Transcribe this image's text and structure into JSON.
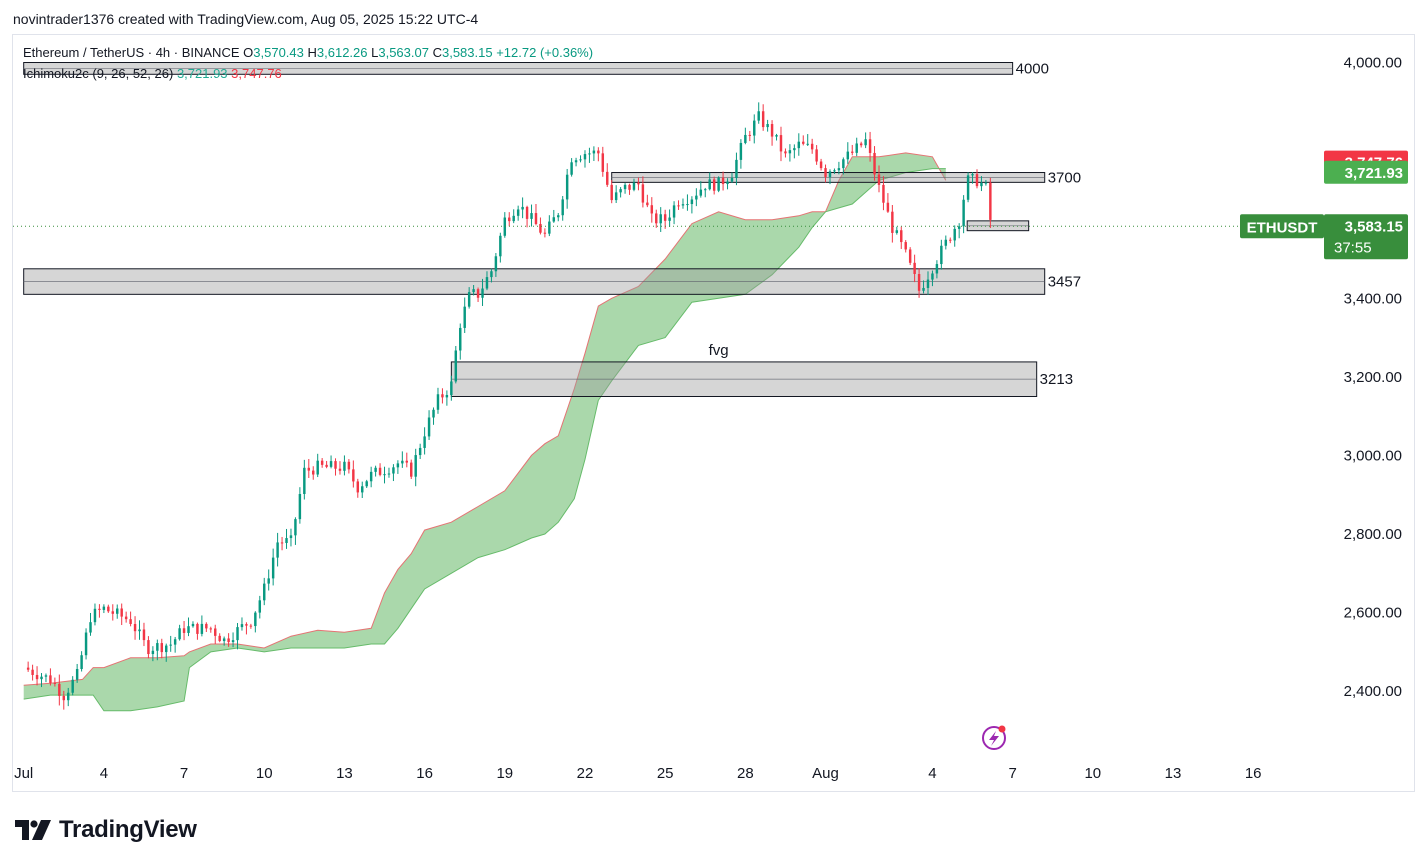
{
  "caption": "novintrader1376 created with TradingView.com, Aug 05, 2025 15:22 UTC-4",
  "legend": {
    "symbol": "Ethereum / TetherUS · 4h · BINANCE",
    "o_label": "O",
    "o_value": "3,570.43",
    "h_label": "H",
    "h_value": "3,612.26",
    "l_label": "L",
    "l_value": "3,563.07",
    "c_label": "C",
    "c_value": "3,583.15",
    "change": "+12.72 (+0.36%)",
    "indicator": "Ichimoku2c (9, 26, 52, 26)",
    "ind_value_1": "3,721.93",
    "ind_value_2": "3,747.76"
  },
  "brand": {
    "name": "TradingView"
  },
  "colors": {
    "up": "#089981",
    "down": "#f23645",
    "cloud": "#a5d6a7",
    "cloud_edge_top": "#e57373",
    "badge_red": "#f23645",
    "badge_green": "#4caf50",
    "price_badge": "#388e3c"
  },
  "chart_data": {
    "type": "candlestick",
    "symbol": "ETHUSDT",
    "y_ticks": [
      "4,000.00",
      "3,400.00",
      "3,200.00",
      "3,000.00",
      "2,800.00",
      "2,600.00",
      "2,400.00"
    ],
    "y_tick_values": [
      4000,
      3400,
      3200,
      3000,
      2800,
      2600,
      2400
    ],
    "y_range": [
      2230,
      4070
    ],
    "x_ticks": [
      "Jul",
      "4",
      "7",
      "10",
      "13",
      "16",
      "19",
      "22",
      "25",
      "28",
      "Aug",
      "4",
      "7",
      "10",
      "13",
      "16"
    ],
    "x_tick_days": [
      0,
      3,
      6,
      9,
      12,
      15,
      18,
      21,
      24,
      27,
      30,
      34,
      37,
      40,
      43,
      46
    ],
    "x_range_days": [
      -0.4,
      48.5
    ],
    "last_price": {
      "price": 3583.15,
      "label": "3,583.15",
      "symbol": "ETHUSDT",
      "countdown": "37:55"
    },
    "badges": [
      {
        "price": 3747.76,
        "label": "3,747.76",
        "color": "red"
      },
      {
        "price": 3721.93,
        "label": "3,721.93",
        "color": "green"
      }
    ],
    "zones": [
      {
        "label": "4000",
        "start_day": 0,
        "end_day": 37,
        "top": 4000,
        "bottom": 3970
      },
      {
        "label": "3700",
        "start_day": 22,
        "end_day": 38.2,
        "top": 3720,
        "bottom": 3695
      },
      {
        "label": "3457",
        "start_day": 0,
        "end_day": 38.2,
        "top": 3475,
        "bottom": 3410
      },
      {
        "label": "3213",
        "start_day": 16,
        "end_day": 37.9,
        "top": 3238,
        "bottom": 3150
      },
      {
        "label": "",
        "start_day": 35.3,
        "end_day": 37.6,
        "top": 3597,
        "bottom": 3572
      }
    ],
    "zone_notes": [
      {
        "label": "fvg",
        "day": 26,
        "price": 3255
      }
    ],
    "price_path": [
      [
        0,
        2460
      ],
      [
        1,
        2430
      ],
      [
        1.5,
        2390
      ],
      [
        2,
        2440
      ],
      [
        2.5,
        2590
      ],
      [
        3,
        2610
      ],
      [
        4,
        2580
      ],
      [
        4.6,
        2510
      ],
      [
        5.5,
        2520
      ],
      [
        6,
        2560
      ],
      [
        7,
        2560
      ],
      [
        7.5,
        2530
      ],
      [
        8.5,
        2580
      ],
      [
        9,
        2660
      ],
      [
        9.5,
        2780
      ],
      [
        10,
        2780
      ],
      [
        10.5,
        2960
      ],
      [
        11,
        2970
      ],
      [
        12,
        2970
      ],
      [
        12.5,
        2920
      ],
      [
        13,
        2950
      ],
      [
        14,
        2980
      ],
      [
        14.5,
        2960
      ],
      [
        15,
        3060
      ],
      [
        15.5,
        3140
      ],
      [
        16,
        3180
      ],
      [
        16.3,
        3330
      ],
      [
        16.7,
        3410
      ],
      [
        17,
        3410
      ],
      [
        17.5,
        3470
      ],
      [
        18,
        3600
      ],
      [
        18.5,
        3640
      ],
      [
        19,
        3600
      ],
      [
        19.5,
        3560
      ],
      [
        20,
        3620
      ],
      [
        20.5,
        3760
      ],
      [
        21,
        3770
      ],
      [
        21.5,
        3770
      ],
      [
        22,
        3650
      ],
      [
        22.5,
        3680
      ],
      [
        23,
        3690
      ],
      [
        23.5,
        3600
      ],
      [
        24,
        3600
      ],
      [
        24.5,
        3650
      ],
      [
        25,
        3660
      ],
      [
        25.5,
        3690
      ],
      [
        26,
        3690
      ],
      [
        26.5,
        3720
      ],
      [
        27,
        3810
      ],
      [
        27.5,
        3860
      ],
      [
        28,
        3820
      ],
      [
        28.5,
        3760
      ],
      [
        29,
        3790
      ],
      [
        29.5,
        3780
      ],
      [
        30,
        3720
      ],
      [
        31,
        3770
      ],
      [
        31.5,
        3800
      ],
      [
        32,
        3680
      ],
      [
        32.5,
        3580
      ],
      [
        33,
        3510
      ],
      [
        33.5,
        3420
      ],
      [
        34,
        3480
      ],
      [
        34.5,
        3540
      ],
      [
        35,
        3600
      ],
      [
        35.3,
        3700
      ],
      [
        35.7,
        3700
      ],
      [
        36,
        3680
      ],
      [
        36.2,
        3583
      ]
    ],
    "cloud": [
      [
        0,
        2415,
        2380
      ],
      [
        1,
        2420,
        2390
      ],
      [
        2.2,
        2430,
        2390
      ],
      [
        2.6,
        2460,
        2390
      ],
      [
        3,
        2460,
        2350
      ],
      [
        4,
        2485,
        2350
      ],
      [
        5,
        2485,
        2360
      ],
      [
        6,
        2490,
        2375
      ],
      [
        6.2,
        2500,
        2460
      ],
      [
        7,
        2520,
        2500
      ],
      [
        8,
        2520,
        2510
      ],
      [
        9,
        2510,
        2500
      ],
      [
        10,
        2540,
        2510
      ],
      [
        11,
        2555,
        2510
      ],
      [
        12,
        2550,
        2510
      ],
      [
        13,
        2560,
        2520
      ],
      [
        13.5,
        2650,
        2520
      ],
      [
        14,
        2710,
        2560
      ],
      [
        14.5,
        2750,
        2610
      ],
      [
        15,
        2810,
        2660
      ],
      [
        16,
        2830,
        2700
      ],
      [
        17,
        2870,
        2740
      ],
      [
        18,
        2910,
        2760
      ],
      [
        19,
        3000,
        2790
      ],
      [
        19.5,
        3030,
        2800
      ],
      [
        20,
        3050,
        2830
      ],
      [
        20.6,
        3170,
        2890
      ],
      [
        21,
        3260,
        2990
      ],
      [
        21.5,
        3380,
        3140
      ],
      [
        22,
        3400,
        3190
      ],
      [
        23,
        3430,
        3280
      ],
      [
        24,
        3500,
        3300
      ],
      [
        25,
        3590,
        3390
      ],
      [
        26,
        3620,
        3400
      ],
      [
        27,
        3600,
        3410
      ],
      [
        28,
        3600,
        3460
      ],
      [
        29,
        3610,
        3530
      ],
      [
        29.5,
        3620,
        3580
      ],
      [
        30,
        3620,
        3620
      ],
      [
        30.5,
        3700,
        3630
      ],
      [
        31,
        3760,
        3640
      ],
      [
        32,
        3760,
        3700
      ],
      [
        33,
        3770,
        3720
      ],
      [
        34,
        3760,
        3730
      ],
      [
        34.5,
        3700,
        3730
      ]
    ]
  }
}
